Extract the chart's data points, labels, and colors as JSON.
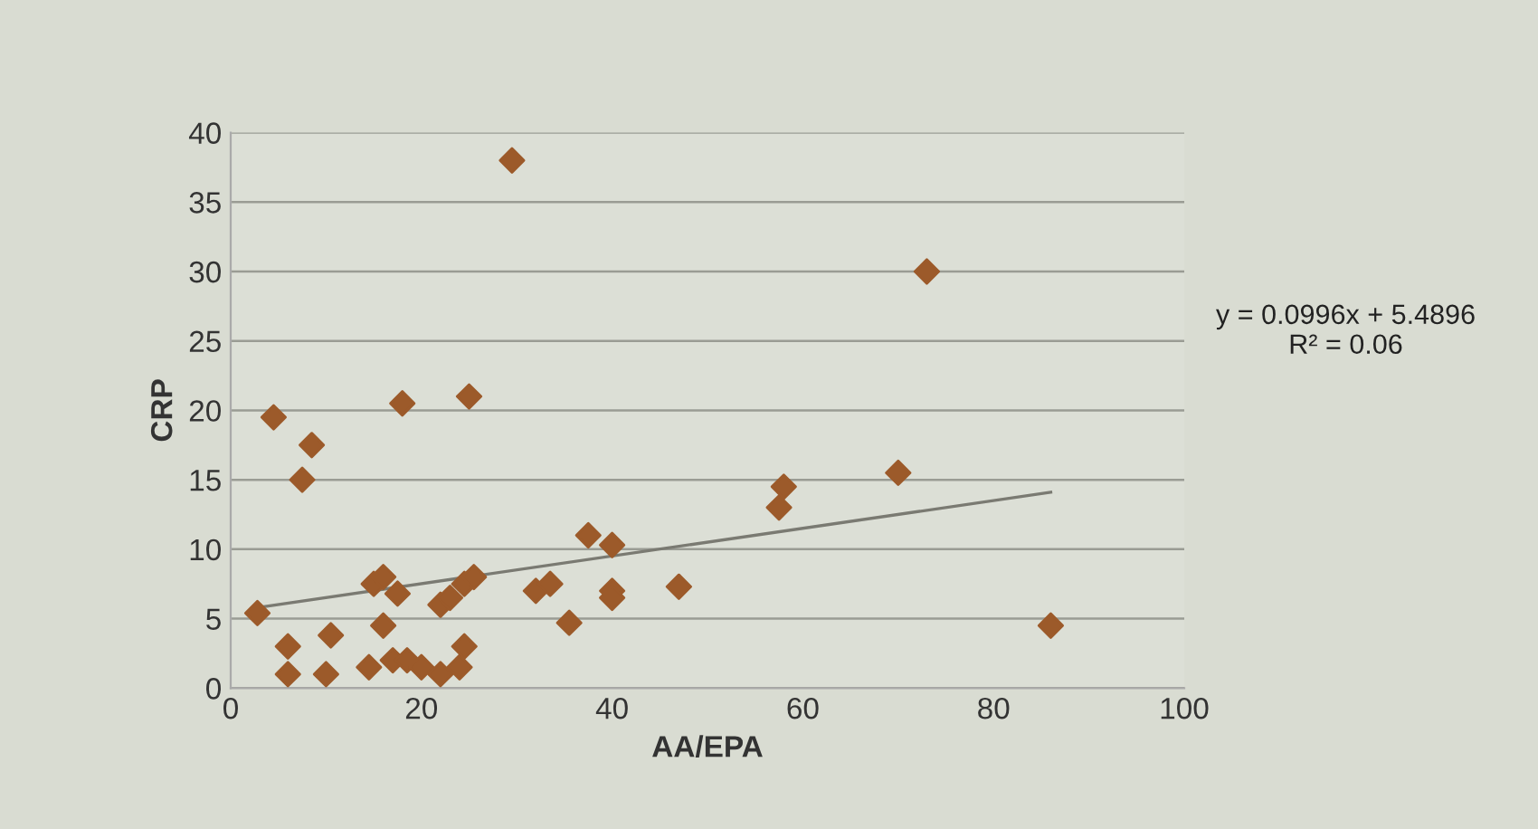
{
  "chart_data": {
    "type": "scatter",
    "xlabel": "AA/EPA",
    "ylabel": "CRP",
    "xlim": [
      0,
      100
    ],
    "ylim": [
      0,
      40
    ],
    "xticks": [
      0,
      20,
      40,
      60,
      80,
      100
    ],
    "yticks": [
      0,
      5,
      10,
      15,
      20,
      25,
      30,
      35,
      40
    ],
    "grid": "y",
    "annotations": [
      "y = 0.0996x + 5.4896\nR² = 0.06"
    ],
    "series": [
      {
        "marker": "diamond",
        "color": "#9c5a2a",
        "x": [
          2.8,
          4.5,
          6,
          6,
          10,
          10.5,
          8.5,
          7.5,
          18,
          25,
          29.5,
          15,
          16,
          17.5,
          16,
          14.5,
          17,
          18.5,
          20,
          22,
          24,
          24.5,
          22,
          23,
          24.5,
          25.5,
          32,
          33.5,
          35.5,
          37.5,
          40,
          40,
          40,
          47,
          57.5,
          58,
          70,
          73,
          86
        ],
        "values": [
          5.4,
          19.5,
          1,
          3,
          1,
          3.8,
          17.5,
          15,
          20.5,
          21,
          38,
          7.5,
          8,
          6.8,
          4.5,
          1.5,
          2,
          2,
          1.5,
          1,
          1.5,
          3,
          6,
          6.5,
          7.5,
          8,
          7,
          7.5,
          4.7,
          11,
          10.3,
          7,
          6.5,
          7.3,
          13,
          14.5,
          15.5,
          30,
          4.5
        ]
      },
      {
        "type": "line",
        "color": "#7a7a72",
        "x": [
          2.8,
          86
        ],
        "values": [
          5.8,
          14.1
        ]
      }
    ]
  }
}
